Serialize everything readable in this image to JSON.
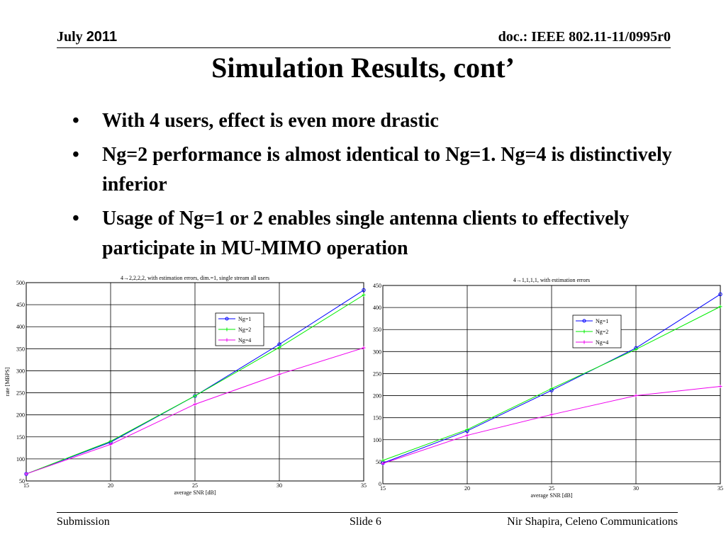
{
  "header": {
    "date_month": "July",
    "date_year": "2011",
    "doc_ref": "doc.: IEEE 802.11-11/0995r0"
  },
  "slide": {
    "title": "Simulation Results, cont’",
    "bullet_char": "•",
    "bullets": [
      "With 4 users, effect is even more drastic",
      "Ng=2 performance is almost identical to Ng=1. Ng=4 is distinctively inferior",
      "Usage of Ng=1 or 2 enables single antenna clients to effectively participate in MU-MIMO operation"
    ]
  },
  "footer": {
    "left": "Submission",
    "center": "Slide 6",
    "right": "Nir Shapira, Celeno Communications"
  },
  "chart_data": [
    {
      "type": "line",
      "title": "4→2,2,2,2, with estimation errors, dim.=1, single stream all users",
      "xlabel": "average SNR [dB]",
      "ylabel": "rate [MBPS]",
      "xlim": [
        15,
        35
      ],
      "ylim": [
        50,
        500
      ],
      "xticks": [
        15,
        20,
        25,
        30,
        35
      ],
      "yticks": [
        50,
        100,
        150,
        200,
        250,
        300,
        350,
        400,
        450,
        500
      ],
      "grid": true,
      "legend_position": "upper-middle-right",
      "x": [
        15,
        20,
        25,
        30,
        35
      ],
      "series": [
        {
          "name": "Ng=1",
          "color": "#0000ff",
          "marker": "o",
          "values": [
            66,
            138,
            243,
            360,
            483
          ]
        },
        {
          "name": "Ng=2",
          "color": "#00ee00",
          "marker": "+",
          "values": [
            66,
            140,
            243,
            353,
            472
          ]
        },
        {
          "name": "Ng=4",
          "color": "#ee00ee",
          "marker": "+",
          "values": [
            66,
            133,
            224,
            292,
            352
          ]
        }
      ]
    },
    {
      "type": "line",
      "title": "4→1,1,1,1, with estimation errors",
      "xlabel": "average SNR [dB]",
      "ylabel": "",
      "xlim": [
        15,
        35
      ],
      "ylim": [
        0,
        450
      ],
      "xticks": [
        15,
        20,
        25,
        30,
        35
      ],
      "yticks": [
        0,
        50,
        100,
        150,
        200,
        250,
        300,
        350,
        400,
        450
      ],
      "grid": true,
      "legend_position": "upper-middle-right",
      "x": [
        15,
        20,
        25,
        30,
        35
      ],
      "series": [
        {
          "name": "Ng=1",
          "color": "#0000ff",
          "marker": "o",
          "values": [
            47,
            120,
            212,
            308,
            430
          ]
        },
        {
          "name": "Ng=2",
          "color": "#00ee00",
          "marker": "+",
          "values": [
            53,
            123,
            216,
            305,
            402
          ]
        },
        {
          "name": "Ng=4",
          "color": "#ee00ee",
          "marker": "+",
          "values": [
            46,
            110,
            157,
            200,
            221
          ]
        }
      ]
    }
  ]
}
